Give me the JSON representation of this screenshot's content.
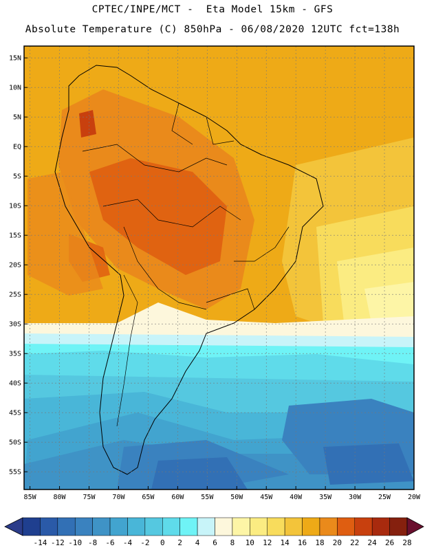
{
  "header": {
    "line1": "CPTEC/INPE/MCT -  Eta Model 15km - GFS",
    "line2": "Absolute Temperature (C) 850hPa - 06/08/2020 12UTC fct=138h"
  },
  "map": {
    "lat_labels": [
      "15N",
      "10N",
      "5N",
      "EQ",
      "5S",
      "10S",
      "15S",
      "20S",
      "25S",
      "30S",
      "35S",
      "40S",
      "45S",
      "50S",
      "55S"
    ],
    "lon_labels": [
      "85W",
      "80W",
      "75W",
      "70W",
      "65W",
      "60W",
      "55W",
      "50W",
      "45W",
      "40W",
      "35W",
      "30W",
      "25W",
      "20W"
    ],
    "lat_range": [
      17,
      -58
    ],
    "lon_range": [
      -86,
      -20
    ],
    "region": "South America"
  },
  "colorbar": {
    "ticks": [
      "-14",
      "-12",
      "-10",
      "-8",
      "-6",
      "-4",
      "-2",
      "0",
      "2",
      "4",
      "6",
      "8",
      "10",
      "12",
      "14",
      "16",
      "18",
      "20",
      "22",
      "24",
      "26",
      "28"
    ],
    "colors": [
      "#1f3f8f",
      "#2a5aa8",
      "#3270b5",
      "#3a82bf",
      "#3f93c6",
      "#42a4cf",
      "#49b6d8",
      "#55c8e0",
      "#5fdbea",
      "#6ff3f6",
      "#c8f4f9",
      "#fdf7dc",
      "#fdf5a6",
      "#fbec82",
      "#f8dc5c",
      "#f3c43a",
      "#eeaa17",
      "#ea8a1b",
      "#df5e11",
      "#c8400e",
      "#a82a0e",
      "#85200e"
    ],
    "under_color": "#2b3c8a",
    "over_color": "#6a0f2e"
  }
}
